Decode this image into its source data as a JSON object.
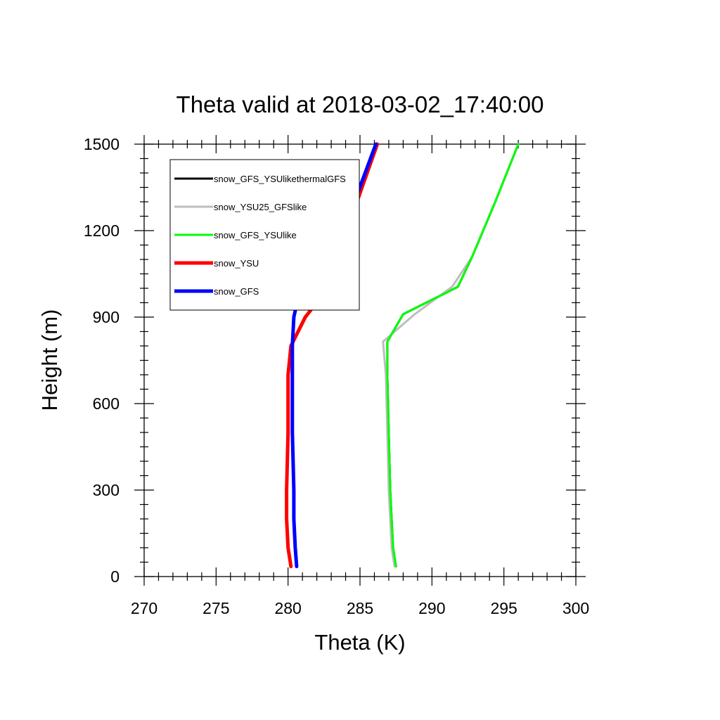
{
  "chart_data": {
    "type": "line",
    "title": "Theta valid at 2018-03-02_17:40:00",
    "xlabel": "Theta (K)",
    "ylabel": "Height (m)",
    "xlim": [
      270,
      300
    ],
    "ylim": [
      0,
      1500
    ],
    "xticks": [
      270,
      275,
      280,
      285,
      290,
      295,
      300
    ],
    "yticks": [
      0,
      300,
      600,
      900,
      1200,
      1500
    ],
    "grid": false,
    "legend_position": "top-left",
    "series": [
      {
        "name": "snow_GFS_YSUlikethermalGFS",
        "color": "#000000",
        "width": 3,
        "x": [
          287.5,
          287.3,
          287.2,
          287.1,
          287.0,
          286.9,
          286.9,
          288.0,
          291.8,
          292.8,
          294.4,
          296.0
        ],
        "y": [
          35,
          100,
          200,
          300,
          500,
          700,
          815,
          910,
          1005,
          1110,
          1300,
          1500
        ]
      },
      {
        "name": "snow_YSU25_GFSlike",
        "color": "#bdbdbd",
        "width": 3,
        "x": [
          287.4,
          287.2,
          287.1,
          287.0,
          286.9,
          286.8,
          286.6,
          288.8,
          291.4,
          292.8,
          294.4,
          296.0
        ],
        "y": [
          35,
          100,
          200,
          300,
          500,
          700,
          815,
          910,
          1005,
          1110,
          1300,
          1500
        ]
      },
      {
        "name": "snow_GFS_YSUlike",
        "color": "#00ff00",
        "width": 3,
        "x": [
          287.5,
          287.3,
          287.2,
          287.1,
          287.0,
          286.9,
          286.9,
          288.0,
          291.8,
          292.8,
          294.4,
          296.0
        ],
        "y": [
          35,
          100,
          200,
          300,
          500,
          700,
          815,
          910,
          1005,
          1110,
          1300,
          1500
        ]
      },
      {
        "name": "snow_YSU",
        "color": "#ff0000",
        "width": 5,
        "x": [
          280.2,
          280.0,
          279.9,
          279.9,
          280.0,
          280.0,
          280.2,
          281.2,
          282.6,
          283.8,
          285.0,
          286.2
        ],
        "y": [
          35,
          100,
          200,
          300,
          500,
          700,
          800,
          900,
          990,
          1160,
          1330,
          1500
        ]
      },
      {
        "name": "snow_GFS",
        "color": "#0000ff",
        "width": 5,
        "x": [
          280.6,
          280.5,
          280.4,
          280.4,
          280.3,
          280.3,
          280.3,
          280.4,
          280.8,
          282.5,
          283.8,
          286.1
        ],
        "y": [
          35,
          100,
          200,
          300,
          500,
          700,
          800,
          900,
          990,
          1090,
          1190,
          1500
        ]
      }
    ]
  }
}
